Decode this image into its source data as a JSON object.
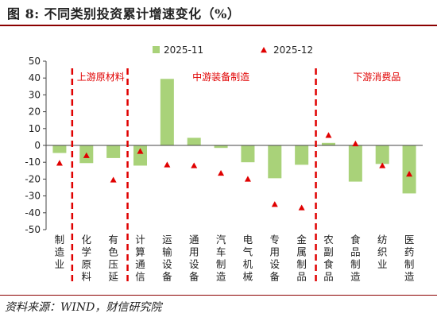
{
  "figure": {
    "title": "图 8:  不同类别投资累计增速变化（%）",
    "source": "资料来源：WIND，财信研究院"
  },
  "chart_data": {
    "type": "bar",
    "categories": [
      "制造业",
      "化学原料",
      "有色压延",
      "计算通信",
      "运输设备",
      "通用设备",
      "汽车制造",
      "电气机械",
      "专用设备",
      "金属制品",
      "农副食品",
      "食品制造",
      "纺织业",
      "医药制造"
    ],
    "ylim": [
      -50,
      50
    ],
    "yticks": [
      50,
      40,
      30,
      20,
      10,
      0,
      -10,
      -20,
      -30,
      -40,
      -50
    ],
    "series": [
      {
        "name": "2025-11",
        "kind": "bar",
        "color": "#a9d279",
        "values": [
          -4.5,
          -10.5,
          -7.5,
          -12,
          39.5,
          4.5,
          -1.5,
          -10,
          -19.5,
          -11.5,
          1.5,
          -21.5,
          -11,
          -28.5
        ]
      },
      {
        "name": "2025-12",
        "kind": "marker",
        "color": "#e00000",
        "values": [
          -10.5,
          -6,
          -20.5,
          -3.5,
          -11.5,
          -12,
          -16.5,
          -20,
          -35,
          -37,
          6,
          1,
          -12,
          -17
        ]
      }
    ],
    "groups": [
      {
        "label": "上游原材料",
        "from": 1,
        "to": 2
      },
      {
        "label": "中游装备制造",
        "from": 3,
        "to": 9
      },
      {
        "label": "下游消费品",
        "from": 10,
        "to": 13
      }
    ],
    "legend_position": "top",
    "grid": false
  }
}
